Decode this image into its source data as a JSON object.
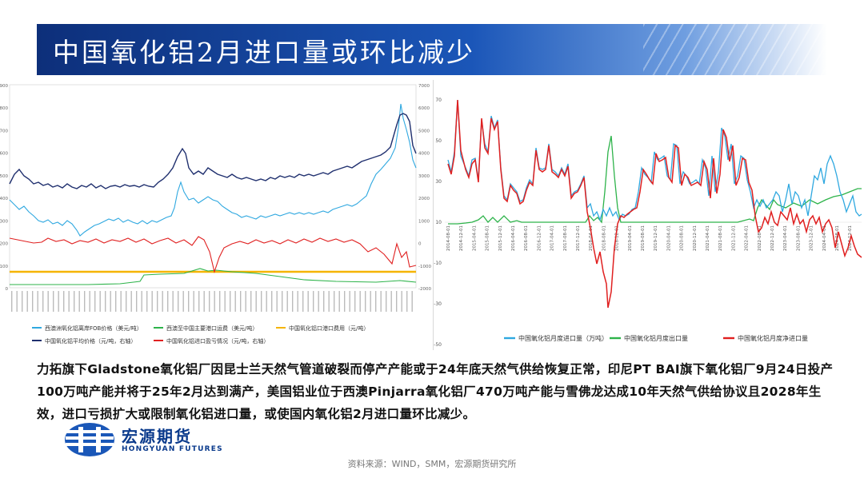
{
  "header": {
    "title": "中国氧化铝2月进口量或环比减少"
  },
  "left_chart": {
    "y_left_ticks": [
      "900",
      "800",
      "700",
      "600",
      "500",
      "400",
      "300",
      "200",
      "100",
      "0"
    ],
    "y_right_ticks": [
      "7000",
      "6000",
      "5000",
      "4000",
      "3000",
      "2000",
      "1000",
      "0",
      "-1000",
      "-2000"
    ],
    "legend": [
      {
        "label": "西澳洲氧化铝离岸FOB价格（美元/吨）",
        "color": "#2fa8e0"
      },
      {
        "label": "西澳至中国主要港口运费（美元/吨）",
        "color": "#2db34a"
      },
      {
        "label": "中国氧化铝口港口费用（元/吨）",
        "color": "#f5b400"
      },
      {
        "label": "中国氧化铝平均价格（元/吨，右轴）",
        "color": "#1f2f6e"
      },
      {
        "label": "中国氧化铝进口盈亏情况（元/吨，右轴）",
        "color": "#e02020"
      }
    ]
  },
  "right_chart": {
    "y_ticks": [
      "70",
      "50",
      "30",
      "10",
      "-10",
      "-30",
      "-50"
    ],
    "x_labels": [
      "2014-08-01",
      "2014-12-01",
      "2015-04-01",
      "2015-08-01",
      "2015-12-01",
      "2016-04-01",
      "2016-08-01",
      "2016-12-01",
      "2017-04-01",
      "2017-08-01",
      "2017-12-01",
      "2018-04-01",
      "2018-08-01",
      "2018-12-01",
      "2019-04-01",
      "2019-08-01",
      "2019-12-01",
      "2020-04-01",
      "2020-08-01",
      "2020-12-01",
      "2021-04-01",
      "2021-08-01",
      "2021-12-01",
      "2022-04-01",
      "2022-08-01",
      "2022-12-01",
      "2023-04-01",
      "2023-08-01",
      "2023-12-01",
      "2024-04-01",
      "2024-08-01",
      "2024-12-01"
    ],
    "legend": [
      {
        "label": "中国氧化铝月度进口量（万吨）",
        "color": "#2fa8e0"
      },
      {
        "label": "中国氧化铝月度出口量",
        "color": "#2db34a"
      },
      {
        "label": "中国氧化铝月度净进口量",
        "color": "#e02020"
      }
    ]
  },
  "body": {
    "paragraph": "力拓旗下Gladstone氧化铝厂因昆士兰天然气管道破裂而停产产能或于24年底天然气供给恢复正常，印尼PT BAI旗下氧化铝厂9月24日投产100万吨产能并将于25年2月达到满产，美国铝业位于西澳Pinjarra氧化铝厂470万吨产能与雪佛龙达成10年天然气供给协议且2028年生效，进口亏损扩大或限制氧化铝进口量，或使国内氧化铝2月进口量环比减少。"
  },
  "logo": {
    "name_zh": "宏源期货",
    "name_en": "HONGYUAN FUTURES"
  },
  "footer": {
    "source": "资料来源：WIND，SMM，宏源期货研究所"
  }
}
